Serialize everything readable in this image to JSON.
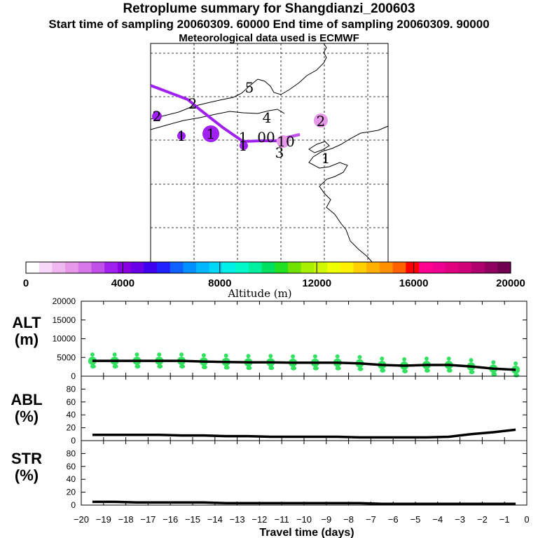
{
  "header": {
    "title": "Retroplume summary for Shangdianzi_200603",
    "sampling": "Start time of sampling 20060309. 60000     End time of sampling 20060309. 90000",
    "met": "Meteorological data used is ECMWF"
  },
  "colorbar": {
    "label": "Altitude (m)",
    "tick_labels": [
      "0",
      "4000",
      "8000",
      "12000",
      "16000",
      "20000"
    ],
    "colors": [
      "#ffffff",
      "#f8d8f8",
      "#f0b8f0",
      "#e898e8",
      "#d878e8",
      "#c050e8",
      "#a020f0",
      "#8a00e0",
      "#6a00e8",
      "#4000f0",
      "#2020ff",
      "#1060ff",
      "#0090ff",
      "#00b8ff",
      "#00d8f8",
      "#00f0e8",
      "#00f8c8",
      "#00f0a0",
      "#00e060",
      "#20e020",
      "#70e000",
      "#a8f000",
      "#d0f800",
      "#f0ff00",
      "#fff000",
      "#ffd000",
      "#ffb000",
      "#ff9000",
      "#ff6000",
      "#ff0000",
      "#ff0090",
      "#f00090",
      "#e00080",
      "#d00078",
      "#b00070",
      "#900060",
      "#700050"
    ]
  },
  "map": {
    "labels": [
      {
        "text": "5",
        "color": "#000000"
      },
      {
        "text": "2",
        "color": "#000000"
      },
      {
        "text": "4",
        "color": "#000000"
      },
      {
        "text": "2",
        "color": "#7a1f8a"
      },
      {
        "text": "1",
        "color": "#000000"
      },
      {
        "text": "1",
        "color": "#000000"
      },
      {
        "text": "1",
        "color": "#000000"
      },
      {
        "text": "1",
        "color": "#000000"
      },
      {
        "text": "00",
        "color": "#000000"
      },
      {
        "text": "10",
        "color": "#000000"
      },
      {
        "text": "3",
        "color": "#000000"
      },
      {
        "text": "1",
        "color": "#7a1f8a"
      },
      {
        "text": "2",
        "color": "#000000"
      }
    ]
  },
  "chart_data": [
    {
      "type": "line",
      "panel": "ALT",
      "ylabel": "ALT\n(m)",
      "ylabel_lines": [
        "ALT",
        "(m)"
      ],
      "ylim": [
        0,
        20000
      ],
      "yticks": [
        "20000",
        "15000",
        "10000",
        "5000",
        "0"
      ],
      "x": [
        -19.5,
        -18.5,
        -17.5,
        -16.5,
        -15.5,
        -14.5,
        -13.5,
        -12.5,
        -11.5,
        -10.5,
        -9.5,
        -8.5,
        -7.5,
        -6.5,
        -5.5,
        -4.5,
        -3.5,
        -2.5,
        -1.5,
        -0.5
      ],
      "y": [
        4100,
        4100,
        4100,
        4100,
        4100,
        3900,
        3800,
        3700,
        3700,
        3600,
        3600,
        3600,
        3400,
        3000,
        2800,
        3000,
        3000,
        2600,
        2000,
        1700
      ],
      "series_color": "#000000",
      "scatter_color": "#33e060"
    },
    {
      "type": "line",
      "panel": "ABL",
      "ylabel": "ABL\n(%)",
      "ylabel_lines": [
        "ABL",
        "(%)"
      ],
      "ylim": [
        0,
        100
      ],
      "yticks": [
        "80",
        "60",
        "40",
        "20",
        "0"
      ],
      "x": [
        -19.5,
        -18.5,
        -17.5,
        -16.5,
        -15.5,
        -14.5,
        -13.5,
        -12.5,
        -11.5,
        -10.5,
        -9.5,
        -8.5,
        -7.5,
        -6.5,
        -5.5,
        -4.5,
        -3.5,
        -2.5,
        -1.5,
        -0.5
      ],
      "y": [
        9,
        9,
        9,
        9,
        8,
        8,
        7,
        7,
        6,
        6,
        6,
        6,
        5,
        5,
        5,
        5,
        6,
        10,
        13,
        17
      ]
    },
    {
      "type": "line",
      "panel": "STR",
      "ylabel": "STR\n(%)",
      "ylabel_lines": [
        "STR",
        "(%)"
      ],
      "ylim": [
        0,
        100
      ],
      "yticks": [
        "80",
        "60",
        "40",
        "20",
        "0"
      ],
      "x": [
        -19.5,
        -18.5,
        -17.5,
        -16.5,
        -15.5,
        -14.5,
        -13.5,
        -12.5,
        -11.5,
        -10.5,
        -9.5,
        -8.5,
        -7.5,
        -6.5,
        -5.5,
        -4.5,
        -3.5,
        -2.5,
        -1.5,
        -0.5
      ],
      "y": [
        5,
        5,
        4,
        4,
        4,
        4,
        3,
        3,
        3,
        3,
        3,
        3,
        3,
        2,
        2,
        2,
        2,
        2,
        2,
        2
      ]
    }
  ],
  "xaxis": {
    "label": "Travel time (days)",
    "xlim": [
      -20,
      0
    ],
    "ticks": [
      -20,
      -19,
      -18,
      -17,
      -16,
      -15,
      -14,
      -13,
      -12,
      -11,
      -10,
      -9,
      -8,
      -7,
      -6,
      -5,
      -4,
      -3,
      -2,
      -1,
      0
    ],
    "tick_labels": [
      "−20",
      "−19",
      "−18",
      "−17",
      "−16",
      "−15",
      "−14",
      "−13",
      "−12",
      "−11",
      "−10",
      "−9",
      "−8",
      "−7",
      "−6",
      "−5",
      "−4",
      "−3",
      "−2",
      "−1",
      "0"
    ]
  }
}
